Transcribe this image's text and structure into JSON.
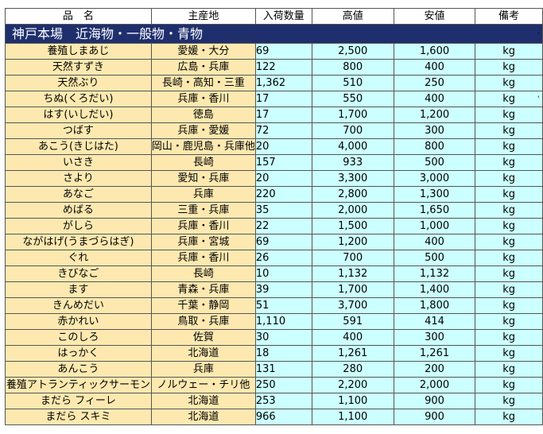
{
  "title": "神戸本場　近海物・一般物・青物",
  "headers": [
    "品　名",
    "主産地",
    "入荷数量",
    "高値",
    "安値",
    "備考"
  ],
  "rows": [
    {
      "name": "養殖しまあじ",
      "area": "愛媛・大分",
      "qty": "69",
      "high": "2,500",
      "low": "1,600",
      "note": "kg"
    },
    {
      "name": "天然すずき",
      "area": "広島・兵庫",
      "qty": "122",
      "high": "800",
      "low": "400",
      "note": "kg"
    },
    {
      "name": "天然ぶり",
      "area": "長崎・高知・三重",
      "qty": "1,362",
      "high": "510",
      "low": "250",
      "note": "kg"
    },
    {
      "name": "ちぬ(くろだい)",
      "area": "兵庫・香川",
      "qty": "17",
      "high": "550",
      "low": "400",
      "note": "kg"
    },
    {
      "name": "はす(いしだい)",
      "area": "徳島",
      "qty": "17",
      "high": "1,700",
      "low": "1,200",
      "note": "kg"
    },
    {
      "name": "つばす",
      "area": "兵庫・愛媛",
      "qty": "72",
      "high": "700",
      "low": "300",
      "note": "kg"
    },
    {
      "name": "あこう(きじはた)",
      "area": "岡山・鹿児島・兵庫他",
      "qty": "20",
      "high": "4,000",
      "low": "800",
      "note": "kg"
    },
    {
      "name": "いさき",
      "area": "長崎",
      "qty": "157",
      "high": "933",
      "low": "500",
      "note": "kg"
    },
    {
      "name": "さより",
      "area": "愛知・兵庫",
      "qty": "20",
      "high": "3,300",
      "low": "3,000",
      "note": "kg"
    },
    {
      "name": "あなご",
      "area": "兵庫",
      "qty": "220",
      "high": "2,800",
      "low": "1,300",
      "note": "kg"
    },
    {
      "name": "めばる",
      "area": "三重・兵庫",
      "qty": "35",
      "high": "2,000",
      "low": "1,650",
      "note": "kg"
    },
    {
      "name": "がしら",
      "area": "兵庫・香川",
      "qty": "22",
      "high": "1,500",
      "low": "1,000",
      "note": "kg"
    },
    {
      "name": "ながはげ(うまづらはぎ)",
      "area": "兵庫・宮城",
      "qty": "69",
      "high": "1,200",
      "low": "400",
      "note": "kg"
    },
    {
      "name": "ぐれ",
      "area": "兵庫・香川",
      "qty": "26",
      "high": "700",
      "low": "500",
      "note": "kg"
    },
    {
      "name": "きびなご",
      "area": "長崎",
      "qty": "10",
      "high": "1,132",
      "low": "1,132",
      "note": "kg"
    },
    {
      "name": "ます",
      "area": "青森・兵庫",
      "qty": "39",
      "high": "1,700",
      "low": "1,400",
      "note": "kg"
    },
    {
      "name": "きんめだい",
      "area": "千葉・静岡",
      "qty": "51",
      "high": "3,700",
      "low": "1,800",
      "note": "kg"
    },
    {
      "name": "赤かれい",
      "area": "鳥取・兵庫",
      "qty": "1,110",
      "high": "591",
      "low": "414",
      "note": "kg"
    },
    {
      "name": "このしろ",
      "area": "佐賀",
      "qty": "30",
      "high": "400",
      "low": "300",
      "note": "kg"
    },
    {
      "name": "はっかく",
      "area": "北海道",
      "qty": "18",
      "high": "1,261",
      "low": "1,261",
      "note": "kg"
    },
    {
      "name": "あんこう",
      "area": "兵庫",
      "qty": "131",
      "high": "280",
      "low": "200",
      "note": "kg"
    },
    {
      "name": "養殖アトランティックサーモン",
      "area": "ノルウェー・チリ他",
      "qty": "250",
      "high": "2,200",
      "low": "2,000",
      "note": "kg"
    },
    {
      "name": "まだら フィーレ",
      "area": "北海道",
      "qty": "253",
      "high": "1,100",
      "low": "900",
      "note": "kg"
    },
    {
      "name": "まだら スキミ",
      "area": "北海道",
      "qty": "966",
      "high": "1,100",
      "low": "900",
      "note": "kg"
    }
  ],
  "colors": {
    "title_bg": "#1f2f6e",
    "name_bg": "#fde9b0",
    "value_bg": "#ccffff"
  }
}
